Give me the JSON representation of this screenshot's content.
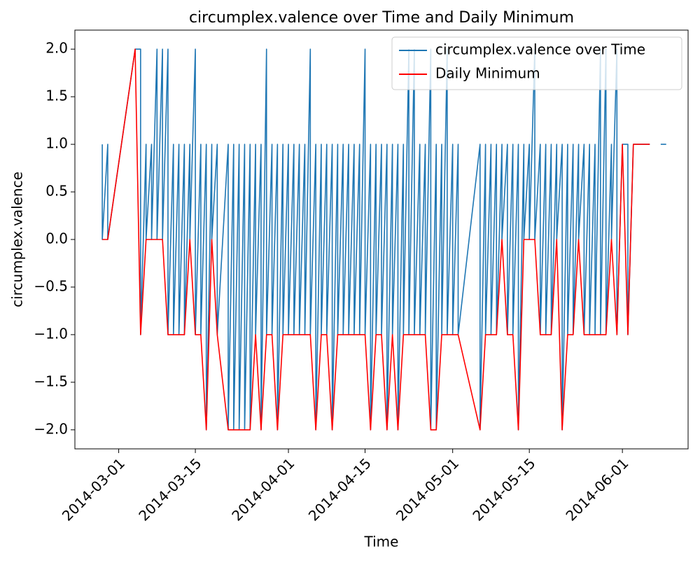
{
  "chart_data": {
    "type": "line",
    "title": "circumplex.valence over Time and Daily Minimum",
    "x_label": "Time",
    "y_label": "circumplex.valence",
    "xlim": [
      "2014-02-21",
      "2014-06-13"
    ],
    "xticks": [
      "2014-03-01",
      "2014-03-15",
      "2014-04-01",
      "2014-04-15",
      "2014-05-01",
      "2014-05-15",
      "2014-06-01"
    ],
    "ylim": [
      -2.2,
      2.2
    ],
    "yticks": [
      {
        "value": -2,
        "label": "−2.0"
      },
      {
        "value": -1.5,
        "label": "−1.5"
      },
      {
        "value": -1,
        "label": "−1.0"
      },
      {
        "value": -0.5,
        "label": "−0.5"
      },
      {
        "value": 0,
        "label": "0.0"
      },
      {
        "value": 0.5,
        "label": "0.5"
      },
      {
        "value": 1,
        "label": "1.0"
      },
      {
        "value": 1.5,
        "label": "1.5"
      },
      {
        "value": 2,
        "label": "2.0"
      }
    ],
    "legend": "upper right",
    "series": [
      {
        "name": "circumplex.valence over Time",
        "color": "#1f77b4",
        "x": [
          "2014-02-26",
          "2014-02-26",
          "2014-02-27",
          "2014-02-27",
          "2014-03-04",
          "2014-03-04",
          "2014-03-05",
          "2014-03-05",
          "2014-03-06",
          "2014-03-06",
          "2014-03-07",
          "2014-03-07",
          "2014-03-08",
          "2014-03-08",
          "2014-03-09",
          "2014-03-09",
          "2014-03-10",
          "2014-03-10",
          "2014-03-11",
          "2014-03-11",
          "2014-03-12",
          "2014-03-12",
          "2014-03-13",
          "2014-03-13",
          "2014-03-14",
          "2014-03-14",
          "2014-03-15",
          "2014-03-15",
          "2014-03-16",
          "2014-03-16",
          "2014-03-17",
          "2014-03-17",
          "2014-03-18",
          "2014-03-18",
          "2014-03-19",
          "2014-03-19",
          "2014-03-21",
          "2014-03-21",
          "2014-03-22",
          "2014-03-22",
          "2014-03-23",
          "2014-03-23",
          "2014-03-24",
          "2014-03-24",
          "2014-03-25",
          "2014-03-25",
          "2014-03-26",
          "2014-03-26",
          "2014-03-27",
          "2014-03-27",
          "2014-03-28",
          "2014-03-28",
          "2014-03-29",
          "2014-03-29",
          "2014-03-30",
          "2014-03-30",
          "2014-03-31",
          "2014-03-31",
          "2014-04-01",
          "2014-04-01",
          "2014-04-02",
          "2014-04-02",
          "2014-04-03",
          "2014-04-03",
          "2014-04-04",
          "2014-04-04",
          "2014-04-05",
          "2014-04-05",
          "2014-04-06",
          "2014-04-06",
          "2014-04-07",
          "2014-04-07",
          "2014-04-08",
          "2014-04-08",
          "2014-04-09",
          "2014-04-09",
          "2014-04-10",
          "2014-04-10",
          "2014-04-11",
          "2014-04-11",
          "2014-04-12",
          "2014-04-12",
          "2014-04-13",
          "2014-04-13",
          "2014-04-14",
          "2014-04-14",
          "2014-04-15",
          "2014-04-15",
          "2014-04-16",
          "2014-04-16",
          "2014-04-17",
          "2014-04-17",
          "2014-04-18",
          "2014-04-18",
          "2014-04-19",
          "2014-04-19",
          "2014-04-20",
          "2014-04-20",
          "2014-04-21",
          "2014-04-21",
          "2014-04-22",
          "2014-04-22",
          "2014-04-23",
          "2014-04-23",
          "2014-04-24",
          "2014-04-24",
          "2014-04-25",
          "2014-04-25",
          "2014-04-26",
          "2014-04-26",
          "2014-04-27",
          "2014-04-27",
          "2014-04-28",
          "2014-04-28",
          "2014-04-29",
          "2014-04-29",
          "2014-04-30",
          "2014-04-30",
          "2014-05-01",
          "2014-05-01",
          "2014-05-02",
          "2014-05-02",
          "2014-05-06",
          "2014-05-06",
          "2014-05-07",
          "2014-05-07",
          "2014-05-08",
          "2014-05-08",
          "2014-05-09",
          "2014-05-09",
          "2014-05-10",
          "2014-05-10",
          "2014-05-11",
          "2014-05-11",
          "2014-05-12",
          "2014-05-12",
          "2014-05-13",
          "2014-05-13",
          "2014-05-14",
          "2014-05-14",
          "2014-05-15",
          "2014-05-15",
          "2014-05-16",
          "2014-05-16",
          "2014-05-17",
          "2014-05-17",
          "2014-05-18",
          "2014-05-18",
          "2014-05-19",
          "2014-05-19",
          "2014-05-20",
          "2014-05-20",
          "2014-05-21",
          "2014-05-21",
          "2014-05-22",
          "2014-05-22",
          "2014-05-23",
          "2014-05-23",
          "2014-05-24",
          "2014-05-24",
          "2014-05-25",
          "2014-05-25",
          "2014-05-26",
          "2014-05-26",
          "2014-05-27",
          "2014-05-27",
          "2014-05-28",
          "2014-05-28",
          "2014-05-29",
          "2014-05-29",
          "2014-05-30",
          "2014-05-30",
          "2014-05-31",
          "2014-05-31",
          "2014-06-01",
          "2014-06-01",
          "2014-06-02",
          "2014-06-02",
          "2014-06-03",
          "2014-06-03",
          "2014-06-04",
          "2014-06-04",
          "2014-06-05",
          "2014-06-05",
          "2014-06-06",
          "2014-06-06",
          "2014-06-07",
          "2014-06-08",
          "2014-06-09"
        ],
        "values": [
          1,
          0,
          1,
          0,
          2,
          2,
          2,
          -1,
          1,
          0,
          1,
          0,
          2,
          0,
          2,
          0,
          2,
          -1,
          1,
          -1,
          1,
          -1,
          1,
          -1,
          1,
          0,
          2,
          -1,
          1,
          -1,
          1,
          -2,
          1,
          0,
          1,
          -1,
          1,
          -2,
          1,
          -2,
          1,
          -2,
          1,
          -2,
          1,
          -2,
          1,
          -1,
          1,
          -2,
          2,
          -1,
          1,
          -1,
          1,
          -2,
          1,
          -1,
          1,
          -1,
          1,
          -1,
          1,
          -1,
          1,
          -1,
          2,
          -1,
          1,
          -2,
          1,
          -1,
          1,
          -1,
          1,
          -2,
          1,
          -1,
          1,
          -1,
          1,
          -1,
          1,
          -1,
          1,
          -1,
          2,
          -1,
          1,
          -2,
          1,
          -1,
          1,
          -1,
          1,
          -2,
          1,
          -1,
          1,
          -2,
          1,
          -1,
          2,
          -1,
          2,
          -1,
          1,
          -1,
          1,
          -1,
          2,
          -2,
          1,
          -2,
          1,
          -1,
          2,
          -1,
          1,
          -1,
          1,
          -1,
          1,
          -2,
          1,
          -1,
          1,
          -1,
          1,
          -1,
          1,
          0,
          1,
          -1,
          1,
          -1,
          1,
          -2,
          1,
          0,
          1,
          0,
          2,
          0,
          1,
          -1,
          1,
          -1,
          1,
          -1,
          1,
          0,
          1,
          -2,
          1,
          -1,
          1,
          -1,
          1,
          0,
          1,
          -1,
          1,
          -1,
          1,
          -1,
          2,
          -1,
          2,
          -1,
          1,
          0,
          2,
          -1,
          1,
          1,
          1,
          -1,
          1,
          1,
          1,
          1,
          1,
          1,
          1,
          1,
          null,
          1,
          1
        ]
      },
      {
        "name": "Daily Minimum",
        "color": "red",
        "x": [
          "2014-02-26",
          "2014-02-27",
          "2014-03-04",
          "2014-03-05",
          "2014-03-06",
          "2014-03-07",
          "2014-03-08",
          "2014-03-09",
          "2014-03-10",
          "2014-03-11",
          "2014-03-12",
          "2014-03-13",
          "2014-03-14",
          "2014-03-15",
          "2014-03-16",
          "2014-03-17",
          "2014-03-18",
          "2014-03-19",
          "2014-03-21",
          "2014-03-22",
          "2014-03-23",
          "2014-03-24",
          "2014-03-25",
          "2014-03-26",
          "2014-03-27",
          "2014-03-28",
          "2014-03-29",
          "2014-03-30",
          "2014-03-31",
          "2014-04-01",
          "2014-04-02",
          "2014-04-03",
          "2014-04-04",
          "2014-04-05",
          "2014-04-06",
          "2014-04-07",
          "2014-04-08",
          "2014-04-09",
          "2014-04-10",
          "2014-04-11",
          "2014-04-12",
          "2014-04-13",
          "2014-04-14",
          "2014-04-15",
          "2014-04-16",
          "2014-04-17",
          "2014-04-18",
          "2014-04-19",
          "2014-04-20",
          "2014-04-21",
          "2014-04-22",
          "2014-04-23",
          "2014-04-24",
          "2014-04-25",
          "2014-04-26",
          "2014-04-27",
          "2014-04-28",
          "2014-04-29",
          "2014-04-30",
          "2014-05-01",
          "2014-05-02",
          "2014-05-06",
          "2014-05-07",
          "2014-05-08",
          "2014-05-09",
          "2014-05-10",
          "2014-05-11",
          "2014-05-12",
          "2014-05-13",
          "2014-05-14",
          "2014-05-15",
          "2014-05-16",
          "2014-05-17",
          "2014-05-18",
          "2014-05-19",
          "2014-05-20",
          "2014-05-21",
          "2014-05-22",
          "2014-05-23",
          "2014-05-24",
          "2014-05-25",
          "2014-05-26",
          "2014-05-27",
          "2014-05-28",
          "2014-05-29",
          "2014-05-30",
          "2014-05-31",
          "2014-06-01",
          "2014-06-02",
          "2014-06-03",
          "2014-06-04",
          "2014-06-05",
          "2014-06-06"
        ],
        "values": [
          0,
          0,
          2,
          -1,
          0,
          0,
          0,
          0,
          -1,
          -1,
          -1,
          -1,
          0,
          -1,
          -1,
          -2,
          0,
          -1,
          -2,
          -2,
          -2,
          -2,
          -2,
          -1,
          -2,
          -1,
          -1,
          -2,
          -1,
          -1,
          -1,
          -1,
          -1,
          -1,
          -2,
          -1,
          -1,
          -2,
          -1,
          -1,
          -1,
          -1,
          -1,
          -1,
          -2,
          -1,
          -1,
          -2,
          -1,
          -2,
          -1,
          -1,
          -1,
          -1,
          -1,
          -2,
          -2,
          -1,
          -1,
          -1,
          -1,
          -2,
          -1,
          -1,
          -1,
          0,
          -1,
          -1,
          -2,
          0,
          0,
          0,
          -1,
          -1,
          -1,
          0,
          -2,
          -1,
          -1,
          0,
          -1,
          -1,
          -1,
          -1,
          -1,
          0,
          -1,
          1,
          -1,
          1,
          1,
          1,
          1
        ]
      }
    ]
  }
}
